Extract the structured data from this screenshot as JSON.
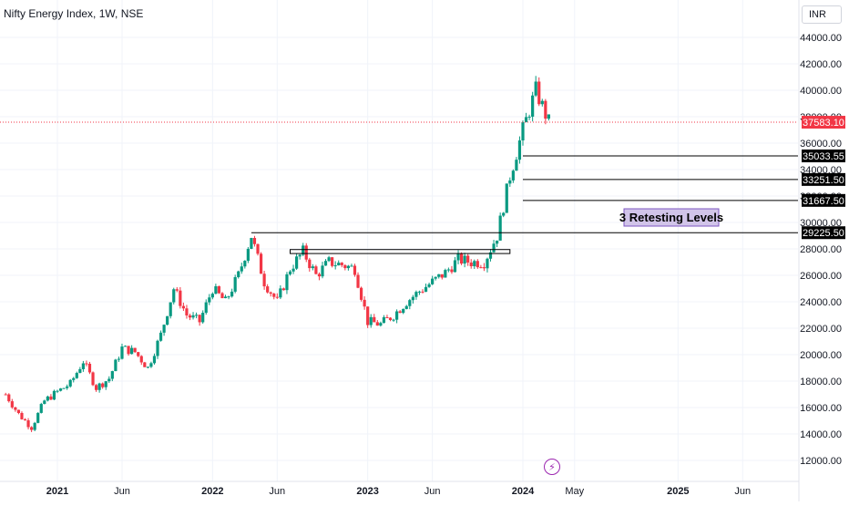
{
  "header": {
    "title": "Nifty Energy Index, 1W, NSE",
    "currency": "INR"
  },
  "chart_data": {
    "type": "candlestick",
    "ylim": [
      11000,
      45500
    ],
    "y_ticks": [
      12000,
      14000,
      16000,
      18000,
      20000,
      22000,
      24000,
      26000,
      28000,
      30000,
      32000,
      34000,
      36000,
      38000,
      40000,
      42000,
      44000
    ],
    "x_ticks": [
      {
        "label": "2021",
        "date": "2021-01",
        "bold": true
      },
      {
        "label": "Jun",
        "date": "2021-06",
        "bold": false
      },
      {
        "label": "2022",
        "date": "2022-01",
        "bold": true
      },
      {
        "label": "Jun",
        "date": "2022-06",
        "bold": false
      },
      {
        "label": "2023",
        "date": "2023-01",
        "bold": true
      },
      {
        "label": "Jun",
        "date": "2023-06",
        "bold": false
      },
      {
        "label": "2024",
        "date": "2024-01",
        "bold": true
      },
      {
        "label": "May",
        "date": "2024-05",
        "bold": false
      },
      {
        "label": "2025",
        "date": "2025-01",
        "bold": true
      },
      {
        "label": "Jun",
        "date": "2025-06",
        "bold": false
      }
    ],
    "x_start": "2020-09",
    "series_anchors": [
      [
        "2020-09",
        17000
      ],
      [
        "2020-10",
        15500
      ],
      [
        "2020-11",
        14500
      ],
      [
        "2020-12",
        16500
      ],
      [
        "2021-01",
        17200
      ],
      [
        "2021-02",
        17800
      ],
      [
        "2021-03",
        19500
      ],
      [
        "2021-04",
        17500
      ],
      [
        "2021-05",
        18200
      ],
      [
        "2021-06",
        20500
      ],
      [
        "2021-07",
        20200
      ],
      [
        "2021-08",
        19000
      ],
      [
        "2021-09",
        21500
      ],
      [
        "2021-10",
        25000
      ],
      [
        "2021-11",
        23000
      ],
      [
        "2021-12",
        22500
      ],
      [
        "2022-01",
        25000
      ],
      [
        "2022-02",
        24000
      ],
      [
        "2022-03",
        26000
      ],
      [
        "2022-04",
        29000
      ],
      [
        "2022-05",
        25500
      ],
      [
        "2022-06",
        24000
      ],
      [
        "2022-07",
        26500
      ],
      [
        "2022-08",
        27800
      ],
      [
        "2022-09",
        26000
      ],
      [
        "2022-10",
        27000
      ],
      [
        "2022-11",
        26800
      ],
      [
        "2022-12",
        26500
      ],
      [
        "2023-01",
        22500
      ],
      [
        "2023-02",
        22300
      ],
      [
        "2023-03",
        23000
      ],
      [
        "2023-04",
        24000
      ],
      [
        "2023-05",
        24800
      ],
      [
        "2023-06",
        25500
      ],
      [
        "2023-07",
        26200
      ],
      [
        "2023-08",
        27200
      ],
      [
        "2023-09",
        27000
      ],
      [
        "2023-10",
        27000
      ],
      [
        "2023-11",
        29000
      ],
      [
        "2023-12",
        33500
      ],
      [
        "2024-01",
        37000
      ],
      [
        "2024-02",
        40000
      ],
      [
        "2024-03",
        37583
      ]
    ],
    "last_price": "37583.10",
    "support_lines": [
      {
        "value": 35033.55,
        "label": "35033.55",
        "from": "2024-01"
      },
      {
        "value": 33251.5,
        "label": "33251.50",
        "from": "2024-01"
      },
      {
        "value": 31667.5,
        "label": "31667.50",
        "from": "2024-01"
      },
      {
        "value": 29225.5,
        "label": "29225.50",
        "from": "2022-04"
      }
    ],
    "zone": {
      "from": "2022-07",
      "to": "2023-12",
      "low": 27650,
      "high": 27950
    },
    "annotation": "3 Retesting Levels",
    "colors": {
      "up": "#089981",
      "down": "#f23645",
      "lines": "#000000",
      "price_line": "#f23645",
      "annotation_bg": "#d1c4e9",
      "annotation_border": "#7e57c2"
    }
  }
}
